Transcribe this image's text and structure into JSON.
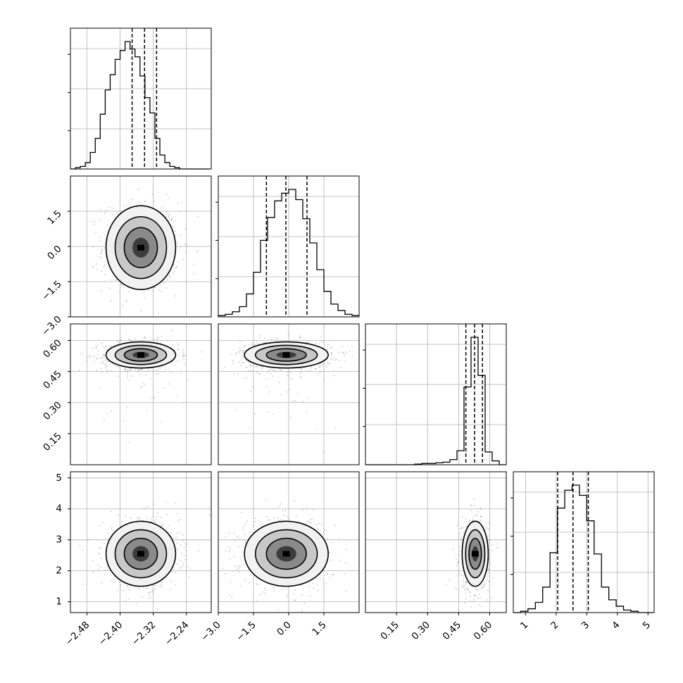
{
  "chart_data": {
    "type": "corner",
    "parameters": 4,
    "quantile_lines": "dashed",
    "grid": true,
    "panels": {
      "diagonal": [
        {
          "name": "hist-p1",
          "range": [
            -2.52,
            -2.18
          ],
          "quantiles": [
            -2.371,
            -2.341,
            -2.312
          ],
          "bins_x": [
            -2.52,
            -2.508,
            -2.496,
            -2.484,
            -2.472,
            -2.46,
            -2.448,
            -2.436,
            -2.424,
            -2.412,
            -2.4,
            -2.388,
            -2.376,
            -2.364,
            -2.352,
            -2.34,
            -2.328,
            -2.316,
            -2.304,
            -2.292,
            -2.28,
            -2.268,
            -2.256,
            -2.244,
            -2.232,
            -2.22,
            -2.208,
            -2.196,
            -2.184
          ],
          "counts": [
            0.0,
            0.01,
            0.02,
            0.05,
            0.13,
            0.24,
            0.43,
            0.62,
            0.74,
            0.86,
            0.93,
            1.0,
            0.94,
            0.88,
            0.73,
            0.56,
            0.44,
            0.24,
            0.11,
            0.05,
            0.02,
            0.01,
            0.0,
            0.0,
            0.0,
            0.0,
            0.0,
            0.0
          ]
        },
        {
          "name": "hist-p2",
          "range": [
            -3.0,
            3.0
          ],
          "quantiles": [
            -0.95,
            -0.12,
            0.78
          ],
          "bins_x": [
            -3.0,
            -2.7,
            -2.4,
            -2.1,
            -1.8,
            -1.5,
            -1.2,
            -0.9,
            -0.6,
            -0.3,
            0.0,
            0.3,
            0.6,
            0.9,
            1.2,
            1.5,
            1.8,
            2.1,
            2.4,
            2.7,
            3.0
          ],
          "counts": [
            0.01,
            0.02,
            0.04,
            0.08,
            0.18,
            0.35,
            0.6,
            0.78,
            0.91,
            0.97,
            1.0,
            0.92,
            0.77,
            0.58,
            0.37,
            0.2,
            0.1,
            0.05,
            0.02,
            0.01
          ]
        },
        {
          "name": "hist-p3",
          "range": [
            0.0,
            0.68
          ],
          "quantiles": [
            0.485,
            0.527,
            0.565
          ],
          "bins_x": [
            0.0,
            0.034,
            0.068,
            0.102,
            0.136,
            0.17,
            0.204,
            0.238,
            0.272,
            0.306,
            0.34,
            0.374,
            0.408,
            0.442,
            0.476,
            0.51,
            0.544,
            0.578,
            0.612,
            0.646,
            0.68
          ],
          "counts": [
            0.0,
            0.0,
            0.0,
            0.0,
            0.0,
            0.0,
            0.0,
            0.005,
            0.01,
            0.01,
            0.015,
            0.02,
            0.04,
            0.11,
            0.61,
            1.0,
            0.7,
            0.1,
            0.03,
            0.0
          ]
        },
        {
          "name": "hist-p4",
          "range": [
            0.6,
            5.2
          ],
          "quantiles": [
            2.05,
            2.55,
            3.05
          ],
          "bins_x": [
            0.6,
            0.84,
            1.08,
            1.32,
            1.56,
            1.8,
            2.04,
            2.28,
            2.52,
            2.76,
            3.0,
            3.24,
            3.48,
            3.72,
            3.96,
            4.2,
            4.44,
            4.68,
            4.92,
            5.16
          ],
          "counts": [
            0.0,
            0.01,
            0.03,
            0.08,
            0.2,
            0.47,
            0.82,
            0.96,
            1.0,
            0.92,
            0.72,
            0.46,
            0.2,
            0.1,
            0.05,
            0.02,
            0.01,
            0.0,
            0.0
          ]
        }
      ],
      "offdiag": [
        {
          "row": 1,
          "col": 0,
          "mean": [
            -2.35,
            -0.05
          ],
          "sd": [
            0.04,
            0.85
          ],
          "outliers": 0
        },
        {
          "row": 2,
          "col": 0,
          "mean": [
            -2.35,
            0.53
          ],
          "sd": [
            0.04,
            0.03
          ],
          "outliers": 1
        },
        {
          "row": 2,
          "col": 1,
          "mean": [
            -0.1,
            0.53
          ],
          "sd": [
            0.85,
            0.03
          ],
          "outliers": 1
        },
        {
          "row": 3,
          "col": 0,
          "mean": [
            -2.35,
            2.55
          ],
          "sd": [
            0.04,
            0.5
          ],
          "outliers": 0
        },
        {
          "row": 3,
          "col": 1,
          "mean": [
            -0.1,
            2.55
          ],
          "sd": [
            0.85,
            0.5
          ],
          "outliers": 0
        },
        {
          "row": 3,
          "col": 2,
          "mean": [
            0.53,
            2.55
          ],
          "sd": [
            0.03,
            0.5
          ],
          "outliers": 1
        }
      ]
    },
    "axes": {
      "x": [
        {
          "ticks": [
            -2.48,
            -2.4,
            -2.32,
            -2.24
          ],
          "labels": [
            "−2.48",
            "−2.40",
            "−2.32",
            "−2.24"
          ]
        },
        {
          "ticks": [
            -3.0,
            -1.5,
            0.0,
            1.5
          ],
          "labels": [
            "−3.0",
            "−1.5",
            "0.0",
            "1.5"
          ]
        },
        {
          "ticks": [
            0.15,
            0.3,
            0.45,
            0.6
          ],
          "labels": [
            "0.15",
            "0.30",
            "0.45",
            "0.60"
          ]
        },
        {
          "ticks": [
            1,
            2,
            3,
            4,
            5
          ],
          "labels": [
            "1",
            "2",
            "3",
            "4",
            "5"
          ]
        }
      ],
      "y": [
        {
          "ticks": [],
          "labels": []
        },
        {
          "ticks": [
            -3.0,
            -1.5,
            0.0,
            1.5
          ],
          "labels": [
            "−3.0",
            "−1.5",
            "0.0",
            "1.5"
          ]
        },
        {
          "ticks": [
            0.15,
            0.3,
            0.45,
            0.6
          ],
          "labels": [
            "0.15",
            "0.30",
            "0.45",
            "0.60"
          ]
        },
        {
          "ticks": [
            1,
            2,
            3,
            4,
            5
          ],
          "labels": [
            "1",
            "2",
            "3",
            "4",
            "5"
          ]
        }
      ],
      "y_ranges": [
        null,
        [
          -3.0,
          3.0
        ],
        [
          0.0,
          0.68
        ],
        [
          0.65,
          5.2
        ]
      ]
    },
    "colors": {
      "line": "#000000",
      "grid": "#b0b0b0",
      "scatter": "#9a9a9a"
    }
  }
}
